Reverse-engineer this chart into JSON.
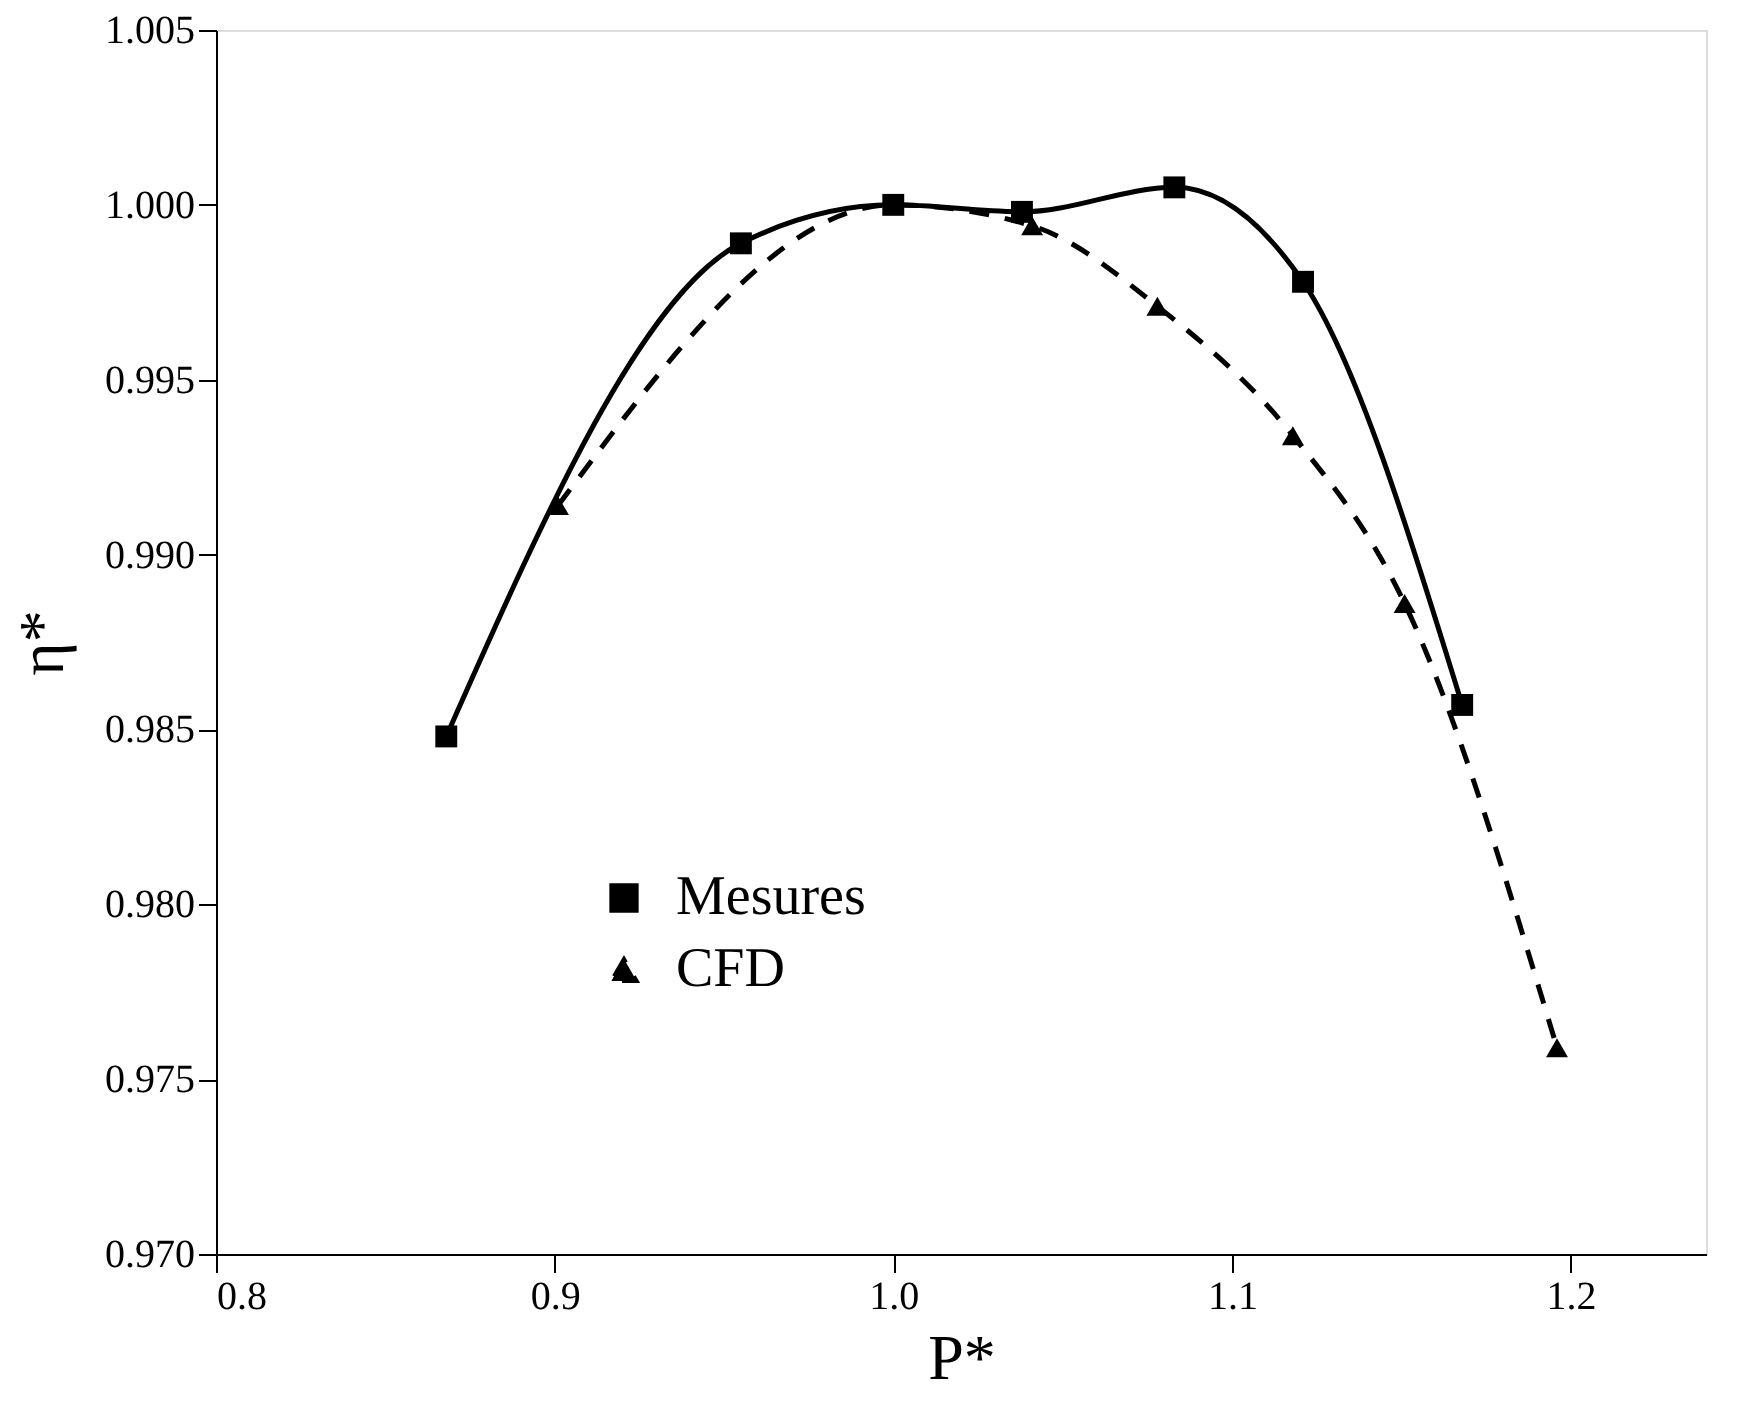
{
  "chart_data": {
    "type": "line",
    "xlabel": "P*",
    "ylabel": "η*",
    "xlim": [
      0.8,
      1.24
    ],
    "ylim": [
      0.97,
      1.005
    ],
    "xticks": [
      {
        "value": 0.8,
        "label": "0.8"
      },
      {
        "value": 0.9,
        "label": "0.9"
      },
      {
        "value": 1.0,
        "label": "1.0"
      },
      {
        "value": 1.1,
        "label": "1.1"
      },
      {
        "value": 1.2,
        "label": "1.2"
      }
    ],
    "yticks": [
      {
        "value": 0.97,
        "label": "0.970"
      },
      {
        "value": 0.975,
        "label": "0.975"
      },
      {
        "value": 0.98,
        "label": "0.980"
      },
      {
        "value": 0.985,
        "label": "0.985"
      },
      {
        "value": 0.99,
        "label": "0.990"
      },
      {
        "value": 0.995,
        "label": "0.995"
      },
      {
        "value": 1.0,
        "label": "1.000"
      },
      {
        "value": 1.005,
        "label": "1.005"
      }
    ],
    "grid": false,
    "legend": "bottom left",
    "series": [
      {
        "name": "Mesures",
        "color": "#000000",
        "marker": "square",
        "line_style": "solid",
        "x": [
          0.868,
          0.955,
          1.0,
          1.038,
          1.083,
          1.121,
          1.168
        ],
        "values": [
          0.9848,
          0.9989,
          1.0,
          0.9998,
          1.0005,
          0.9978,
          0.9857
        ]
      },
      {
        "name": "CFD",
        "color": "#000000",
        "marker": "triangle",
        "line_style": "dashed",
        "x": [
          0.901,
          1.0,
          1.041,
          1.078,
          1.118,
          1.151,
          1.196
        ],
        "values": [
          0.9914,
          1.0,
          0.9994,
          0.9971,
          0.9934,
          0.9886,
          0.9759
        ]
      }
    ]
  }
}
